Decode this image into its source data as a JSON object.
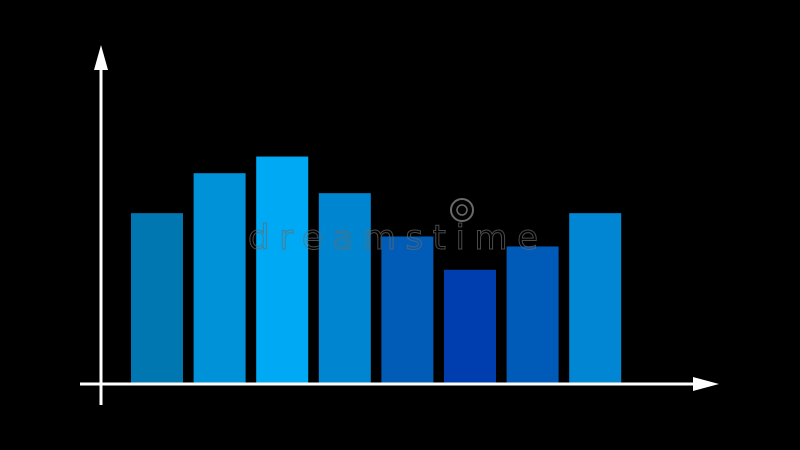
{
  "chart_data": {
    "type": "bar",
    "title": "",
    "xlabel": "",
    "ylabel": "",
    "categories": [
      "",
      "",
      "",
      "",
      "",
      "",
      "",
      ""
    ],
    "values": [
      51,
      63,
      68,
      57,
      44,
      34,
      41,
      51
    ],
    "ylim": [
      0,
      100
    ],
    "grid": false,
    "legend": "none",
    "axes": {
      "arrows": true,
      "color": "#ffffff"
    },
    "background": "#000000",
    "bar_colors": [
      "#0077b0",
      "#0092d8",
      "#00a9f4",
      "#0086d0",
      "#005cb6",
      "#003eb0",
      "#005ab8",
      "#0086d2"
    ]
  },
  "watermark": "dreamstime"
}
